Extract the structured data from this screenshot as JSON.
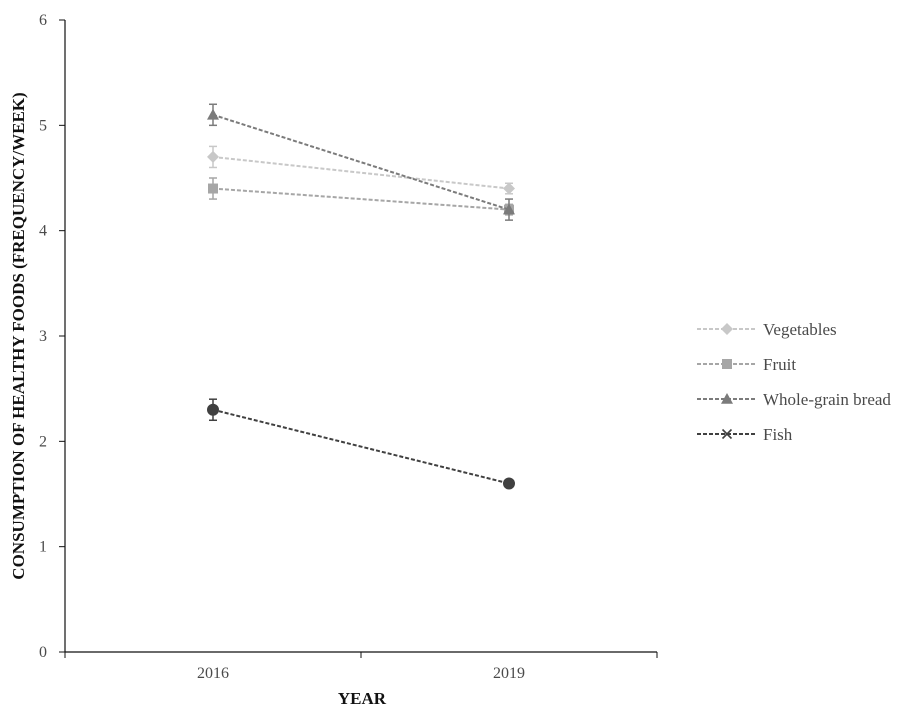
{
  "chart_data": {
    "type": "line",
    "title": "",
    "xlabel": "YEAR",
    "ylabel": "CONSUMPTION OF HEALTHY FOODS (FREQUENCY/WEEK)",
    "categories": [
      "2016",
      "2019"
    ],
    "ylim": [
      0,
      6
    ],
    "yticks": [
      "0",
      "1",
      "2",
      "3",
      "4",
      "5",
      "6"
    ],
    "grid": false,
    "legend_position": "right",
    "series": [
      {
        "name": "Vegetables",
        "values": [
          4.7,
          4.4
        ],
        "error": [
          0.1,
          0.05
        ],
        "marker": "diamond",
        "color": "#c8c8c8"
      },
      {
        "name": "Fruit",
        "values": [
          4.4,
          4.2
        ],
        "error": [
          0.1,
          0.05
        ],
        "marker": "square",
        "color": "#a6a6a6"
      },
      {
        "name": "Whole-grain bread",
        "values": [
          5.1,
          4.2
        ],
        "error": [
          0.1,
          0.1
        ],
        "marker": "triangle",
        "color": "#7b7b7b"
      },
      {
        "name": "Fish",
        "values": [
          2.3,
          1.6
        ],
        "error": [
          0.1,
          0.03
        ],
        "marker": "cross",
        "color": "#404040"
      }
    ]
  }
}
